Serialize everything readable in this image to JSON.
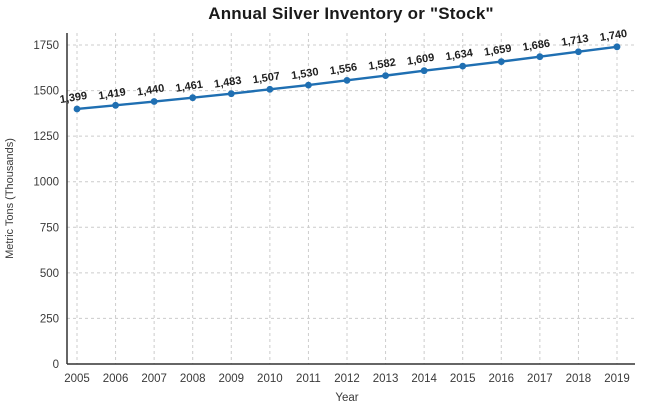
{
  "chart_data": {
    "type": "line",
    "title": "Annual Silver Inventory or \"Stock\"",
    "xlabel": "Year",
    "ylabel": "Metric Tons (Thousands)",
    "categories": [
      2005,
      2006,
      2007,
      2008,
      2009,
      2010,
      2011,
      2012,
      2013,
      2014,
      2015,
      2016,
      2017,
      2018,
      2019
    ],
    "values": [
      1399,
      1419,
      1440,
      1461,
      1483,
      1507,
      1530,
      1556,
      1582,
      1609,
      1634,
      1659,
      1686,
      1713,
      1740
    ],
    "point_labels": [
      "1,399",
      "1,419",
      "1,440",
      "1,461",
      "1,483",
      "1,507",
      "1,530",
      "1,556",
      "1,582",
      "1,609",
      "1,634",
      "1,659",
      "1,686",
      "1,713",
      "1,740"
    ],
    "yticks": [
      0,
      250,
      500,
      750,
      1000,
      1250,
      1500,
      1750
    ],
    "ylim": [
      0,
      1815
    ],
    "grid": "dashed",
    "legend": "none",
    "colors": {
      "line": "#1f6fb2",
      "marker": "#1f6fb2",
      "data_label": "#1f1f1f",
      "axis": "#333333",
      "grid": "#cccccc",
      "tick_label": "#3a3a3a",
      "title": "#1a1a1a"
    }
  }
}
